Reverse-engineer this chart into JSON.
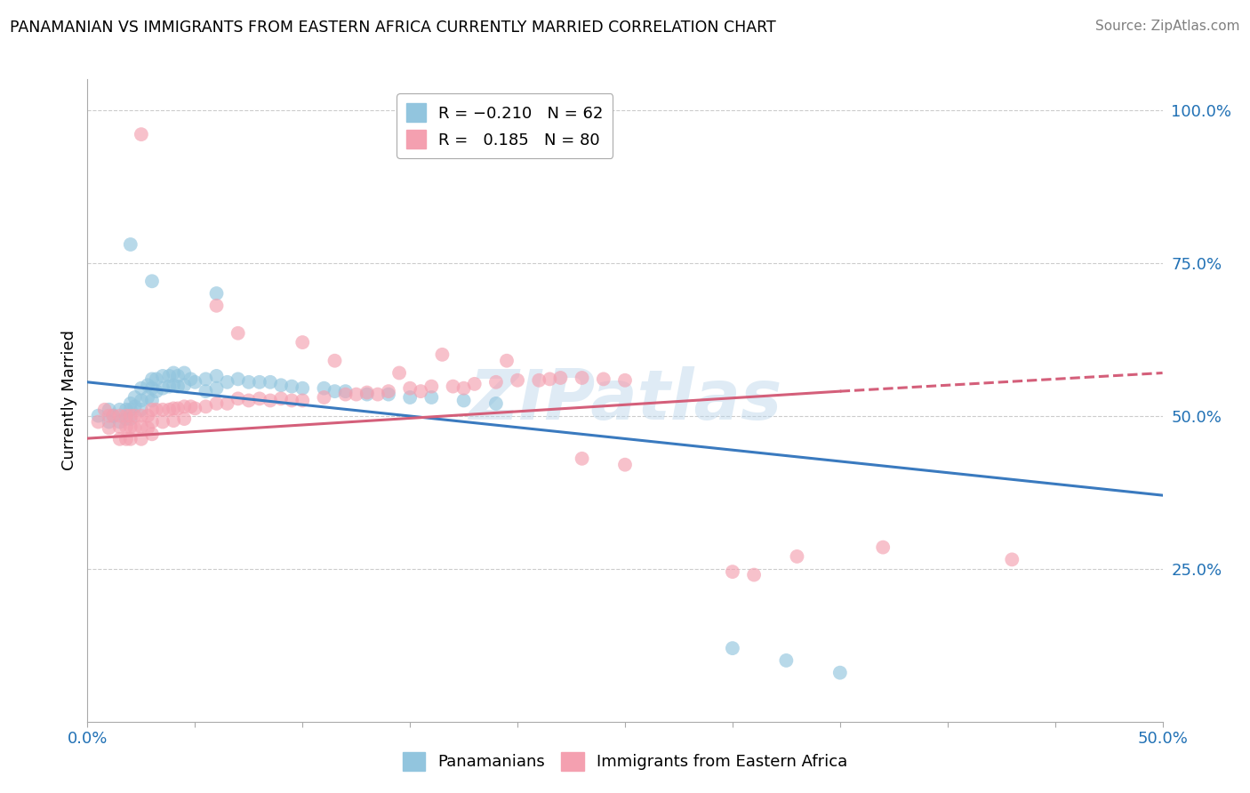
{
  "title": "PANAMANIAN VS IMMIGRANTS FROM EASTERN AFRICA CURRENTLY MARRIED CORRELATION CHART",
  "source": "Source: ZipAtlas.com",
  "ylabel": "Currently Married",
  "xlim": [
    0.0,
    0.5
  ],
  "ylim": [
    0.0,
    1.05
  ],
  "xticks": [
    0.0,
    0.05,
    0.1,
    0.15,
    0.2,
    0.25,
    0.3,
    0.35,
    0.4,
    0.45,
    0.5
  ],
  "ytick_labels_right": [
    "25.0%",
    "50.0%",
    "75.0%",
    "100.0%"
  ],
  "yticks_right": [
    0.25,
    0.5,
    0.75,
    1.0
  ],
  "blue_color": "#92c5de",
  "pink_color": "#f4a0b0",
  "blue_line_color": "#3a7abf",
  "pink_line_color": "#d45f7a",
  "watermark": "ZIPatlas",
  "blue_x": [
    0.005,
    0.01,
    0.01,
    0.012,
    0.015,
    0.015,
    0.018,
    0.018,
    0.02,
    0.02,
    0.02,
    0.022,
    0.022,
    0.025,
    0.025,
    0.025,
    0.028,
    0.028,
    0.03,
    0.03,
    0.03,
    0.032,
    0.032,
    0.035,
    0.035,
    0.038,
    0.038,
    0.04,
    0.04,
    0.042,
    0.042,
    0.045,
    0.045,
    0.048,
    0.05,
    0.055,
    0.055,
    0.06,
    0.06,
    0.065,
    0.07,
    0.075,
    0.08,
    0.085,
    0.09,
    0.095,
    0.1,
    0.11,
    0.115,
    0.12,
    0.13,
    0.14,
    0.15,
    0.16,
    0.175,
    0.19,
    0.02,
    0.03,
    0.06,
    0.3,
    0.325,
    0.35
  ],
  "blue_y": [
    0.5,
    0.51,
    0.49,
    0.5,
    0.51,
    0.49,
    0.51,
    0.495,
    0.52,
    0.51,
    0.495,
    0.53,
    0.515,
    0.545,
    0.525,
    0.51,
    0.55,
    0.53,
    0.56,
    0.545,
    0.525,
    0.56,
    0.54,
    0.565,
    0.545,
    0.565,
    0.548,
    0.57,
    0.55,
    0.565,
    0.548,
    0.57,
    0.55,
    0.56,
    0.555,
    0.56,
    0.54,
    0.565,
    0.545,
    0.555,
    0.56,
    0.555,
    0.555,
    0.555,
    0.55,
    0.548,
    0.545,
    0.545,
    0.54,
    0.54,
    0.535,
    0.535,
    0.53,
    0.53,
    0.525,
    0.52,
    0.78,
    0.72,
    0.7,
    0.12,
    0.1,
    0.08
  ],
  "pink_x": [
    0.005,
    0.008,
    0.01,
    0.01,
    0.012,
    0.015,
    0.015,
    0.015,
    0.018,
    0.018,
    0.018,
    0.02,
    0.02,
    0.02,
    0.022,
    0.022,
    0.025,
    0.025,
    0.025,
    0.028,
    0.028,
    0.03,
    0.03,
    0.03,
    0.032,
    0.035,
    0.035,
    0.038,
    0.04,
    0.04,
    0.042,
    0.045,
    0.045,
    0.048,
    0.05,
    0.055,
    0.06,
    0.065,
    0.07,
    0.075,
    0.08,
    0.085,
    0.09,
    0.095,
    0.1,
    0.11,
    0.12,
    0.125,
    0.13,
    0.135,
    0.14,
    0.15,
    0.155,
    0.16,
    0.17,
    0.175,
    0.18,
    0.19,
    0.2,
    0.21,
    0.215,
    0.22,
    0.23,
    0.24,
    0.25,
    0.025,
    0.06,
    0.07,
    0.1,
    0.115,
    0.145,
    0.165,
    0.195,
    0.23,
    0.25,
    0.3,
    0.31,
    0.33,
    0.37,
    0.43
  ],
  "pink_y": [
    0.49,
    0.51,
    0.5,
    0.48,
    0.5,
    0.5,
    0.482,
    0.462,
    0.5,
    0.482,
    0.462,
    0.5,
    0.482,
    0.462,
    0.5,
    0.48,
    0.5,
    0.482,
    0.462,
    0.5,
    0.48,
    0.51,
    0.49,
    0.47,
    0.51,
    0.51,
    0.49,
    0.51,
    0.512,
    0.492,
    0.512,
    0.515,
    0.495,
    0.515,
    0.512,
    0.515,
    0.52,
    0.52,
    0.528,
    0.525,
    0.528,
    0.525,
    0.528,
    0.525,
    0.525,
    0.53,
    0.535,
    0.535,
    0.538,
    0.535,
    0.54,
    0.545,
    0.54,
    0.548,
    0.548,
    0.545,
    0.552,
    0.555,
    0.558,
    0.558,
    0.56,
    0.562,
    0.562,
    0.56,
    0.558,
    0.96,
    0.68,
    0.635,
    0.62,
    0.59,
    0.57,
    0.6,
    0.59,
    0.43,
    0.42,
    0.245,
    0.24,
    0.27,
    0.285,
    0.265
  ]
}
